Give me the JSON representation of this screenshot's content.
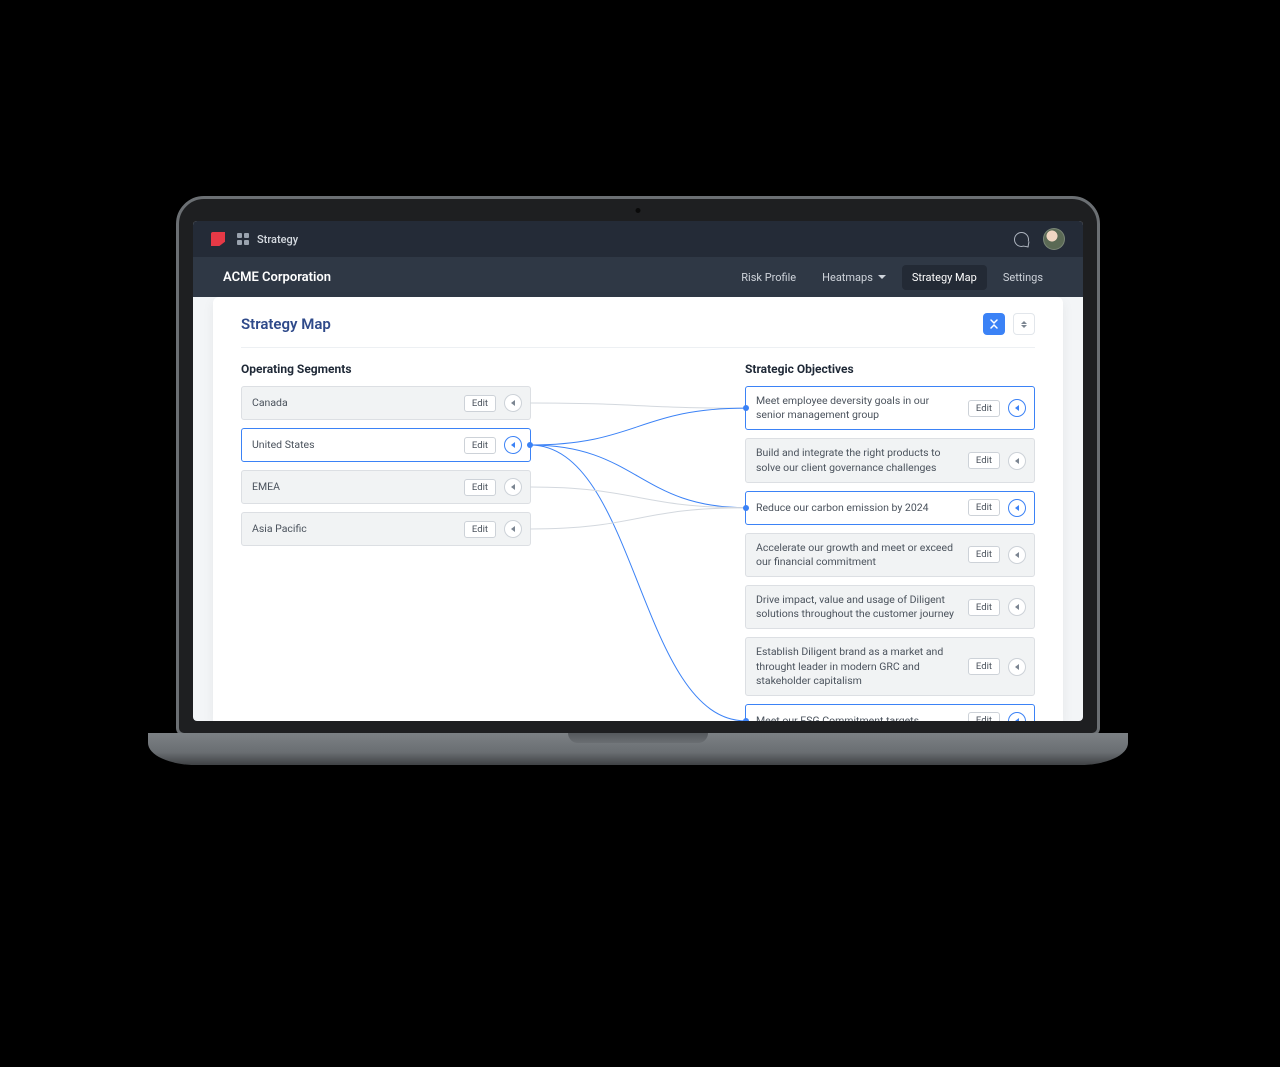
{
  "topbar": {
    "product_label": "Strategy"
  },
  "header": {
    "company": "ACME Corporation",
    "nav": {
      "risk_profile": "Risk Profile",
      "heatmaps": "Heatmaps",
      "strategy_map": "Strategy Map",
      "settings": "Settings"
    }
  },
  "card": {
    "title": "Strategy Map"
  },
  "segments": {
    "title": "Operating Segments",
    "edit_label": "Edit",
    "items": [
      {
        "label": "Canada",
        "active": false
      },
      {
        "label": "United States",
        "active": true
      },
      {
        "label": "EMEA",
        "active": false
      },
      {
        "label": "Asia Pacific",
        "active": false
      }
    ]
  },
  "objectives": {
    "title": "Strategic Objectives",
    "edit_label": "Edit",
    "items": [
      {
        "label": "Meet employee deversity goals in our senior management group",
        "active": true
      },
      {
        "label": "Build and integrate the right products to solve our client governance challenges",
        "active": false
      },
      {
        "label": "Reduce our carbon emission by 2024",
        "active": true
      },
      {
        "label": "Accelerate our growth and meet or exceed our financial commitment",
        "active": false
      },
      {
        "label": "Drive impact, value and usage of Diligent solutions throughout the customer journey",
        "active": false
      },
      {
        "label": "Establish Diligent brand as a market and throught leader in modern GRC and stakeholder capitalism",
        "active": false
      },
      {
        "label": "Meet our ESG Commitment targets",
        "active": true
      }
    ]
  },
  "connections": {
    "stroke_active": "#3b82f6",
    "stroke_inactive": "#d3d8de",
    "width": 1,
    "edges": [
      {
        "from_segment": 0,
        "to_objective": 0,
        "active": false
      },
      {
        "from_segment": 1,
        "to_objective": 0,
        "active": true
      },
      {
        "from_segment": 1,
        "to_objective": 2,
        "active": true
      },
      {
        "from_segment": 1,
        "to_objective": 6,
        "active": true
      },
      {
        "from_segment": 2,
        "to_objective": 2,
        "active": false
      },
      {
        "from_segment": 3,
        "to_objective": 2,
        "active": false
      }
    ]
  }
}
